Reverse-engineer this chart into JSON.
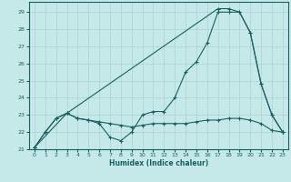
{
  "xlabel": "Humidex (Indice chaleur)",
  "ylabel": "",
  "background_color": "#c5e8e8",
  "grid_color": "#b0d0d0",
  "line_color": "#1a6060",
  "xlim": [
    -0.5,
    23.5
  ],
  "ylim": [
    21.0,
    29.6
  ],
  "yticks": [
    21,
    22,
    23,
    24,
    25,
    26,
    27,
    28,
    29
  ],
  "xticks": [
    0,
    1,
    2,
    3,
    4,
    5,
    6,
    7,
    8,
    9,
    10,
    11,
    12,
    13,
    14,
    15,
    16,
    17,
    18,
    19,
    20,
    21,
    22,
    23
  ],
  "line1_x": [
    0,
    1,
    2,
    3,
    4,
    5,
    6,
    7,
    8,
    9,
    10,
    11,
    12,
    13,
    14,
    15,
    16,
    17,
    18,
    19,
    20,
    21,
    22,
    23
  ],
  "line1_y": [
    21.1,
    22.0,
    22.8,
    23.1,
    22.8,
    22.7,
    22.6,
    22.5,
    22.4,
    22.3,
    22.4,
    22.5,
    22.5,
    22.5,
    22.5,
    22.6,
    22.7,
    22.7,
    22.8,
    22.8,
    22.7,
    22.5,
    22.1,
    22.0
  ],
  "line2_x": [
    0,
    1,
    2,
    3,
    4,
    5,
    6,
    7,
    8,
    9,
    10,
    11,
    12,
    13,
    14,
    15,
    16,
    17,
    18,
    19,
    20,
    21,
    22,
    23
  ],
  "line2_y": [
    21.1,
    22.0,
    22.8,
    23.1,
    22.8,
    22.7,
    22.5,
    21.7,
    21.5,
    22.0,
    23.0,
    23.2,
    23.2,
    24.0,
    25.5,
    26.1,
    27.2,
    29.0,
    29.0,
    29.0,
    27.8,
    24.8,
    23.0,
    22.0
  ],
  "line3_x": [
    0,
    3,
    17,
    18,
    19,
    20,
    21,
    22,
    23
  ],
  "line3_y": [
    21.1,
    23.1,
    29.2,
    29.2,
    29.0,
    27.8,
    24.8,
    23.0,
    22.0
  ]
}
